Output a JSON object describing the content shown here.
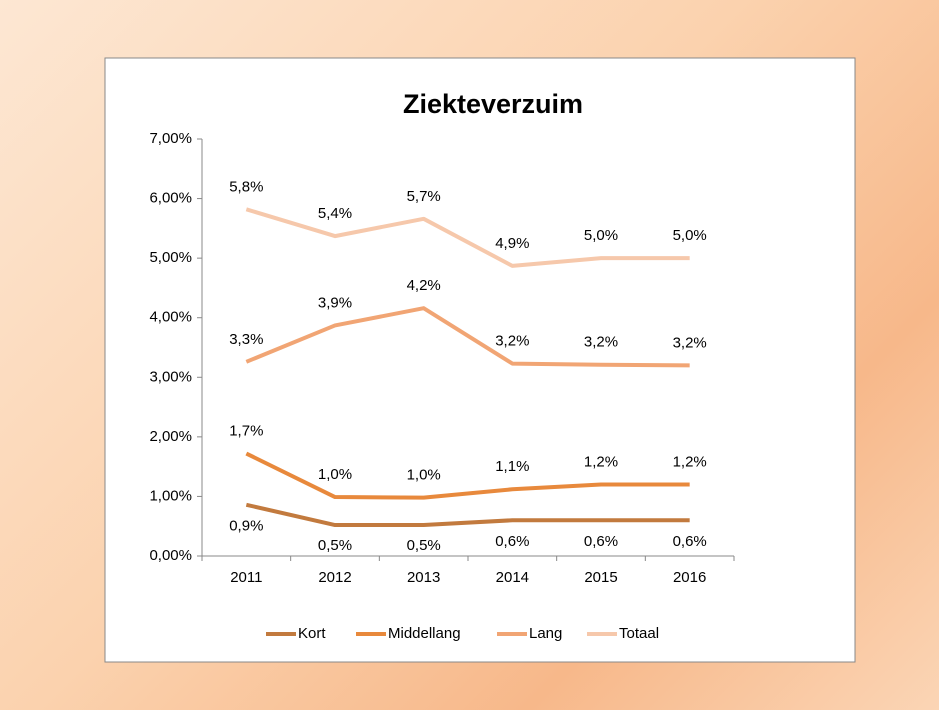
{
  "chart_data": {
    "type": "line",
    "title": "Ziekteverzuim",
    "categories": [
      "2011",
      "2012",
      "2013",
      "2014",
      "2015",
      "2016"
    ],
    "series": [
      {
        "name": "Kort",
        "color": "#c27a3e",
        "values": [
          0.86,
          0.52,
          0.52,
          0.6,
          0.6,
          0.6
        ],
        "value_labels": [
          "0,9%",
          "0,5%",
          "0,5%",
          "0,6%",
          "0,6%",
          "0,6%"
        ]
      },
      {
        "name": "Middellang",
        "color": "#e8893c",
        "values": [
          1.72,
          0.99,
          0.98,
          1.12,
          1.2,
          1.2
        ],
        "value_labels": [
          "1,7%",
          "1,0%",
          "1,0%",
          "1,1%",
          "1,2%",
          "1,2%"
        ]
      },
      {
        "name": "Lang",
        "color": "#f1a574",
        "values": [
          3.26,
          3.87,
          4.16,
          3.23,
          3.21,
          3.2
        ],
        "value_labels": [
          "3,3%",
          "3,9%",
          "4,2%",
          "3,2%",
          "3,2%",
          "3,2%"
        ]
      },
      {
        "name": "Totaal",
        "color": "#f6c8ab",
        "values": [
          5.82,
          5.37,
          5.66,
          4.87,
          5.0,
          5.0
        ],
        "value_labels": [
          "5,8%",
          "5,4%",
          "5,7%",
          "4,9%",
          "5,0%",
          "5,0%"
        ]
      }
    ],
    "ylim": [
      0,
      7
    ],
    "yticks": [
      {
        "value": 0,
        "label": "0,00%"
      },
      {
        "value": 1,
        "label": "1,00%"
      },
      {
        "value": 2,
        "label": "2,00%"
      },
      {
        "value": 3,
        "label": "3,00%"
      },
      {
        "value": 4,
        "label": "4,00%"
      },
      {
        "value": 5,
        "label": "5,00%"
      },
      {
        "value": 6,
        "label": "6,00%"
      },
      {
        "value": 7,
        "label": "7,00%"
      }
    ],
    "legend": "bottom"
  }
}
